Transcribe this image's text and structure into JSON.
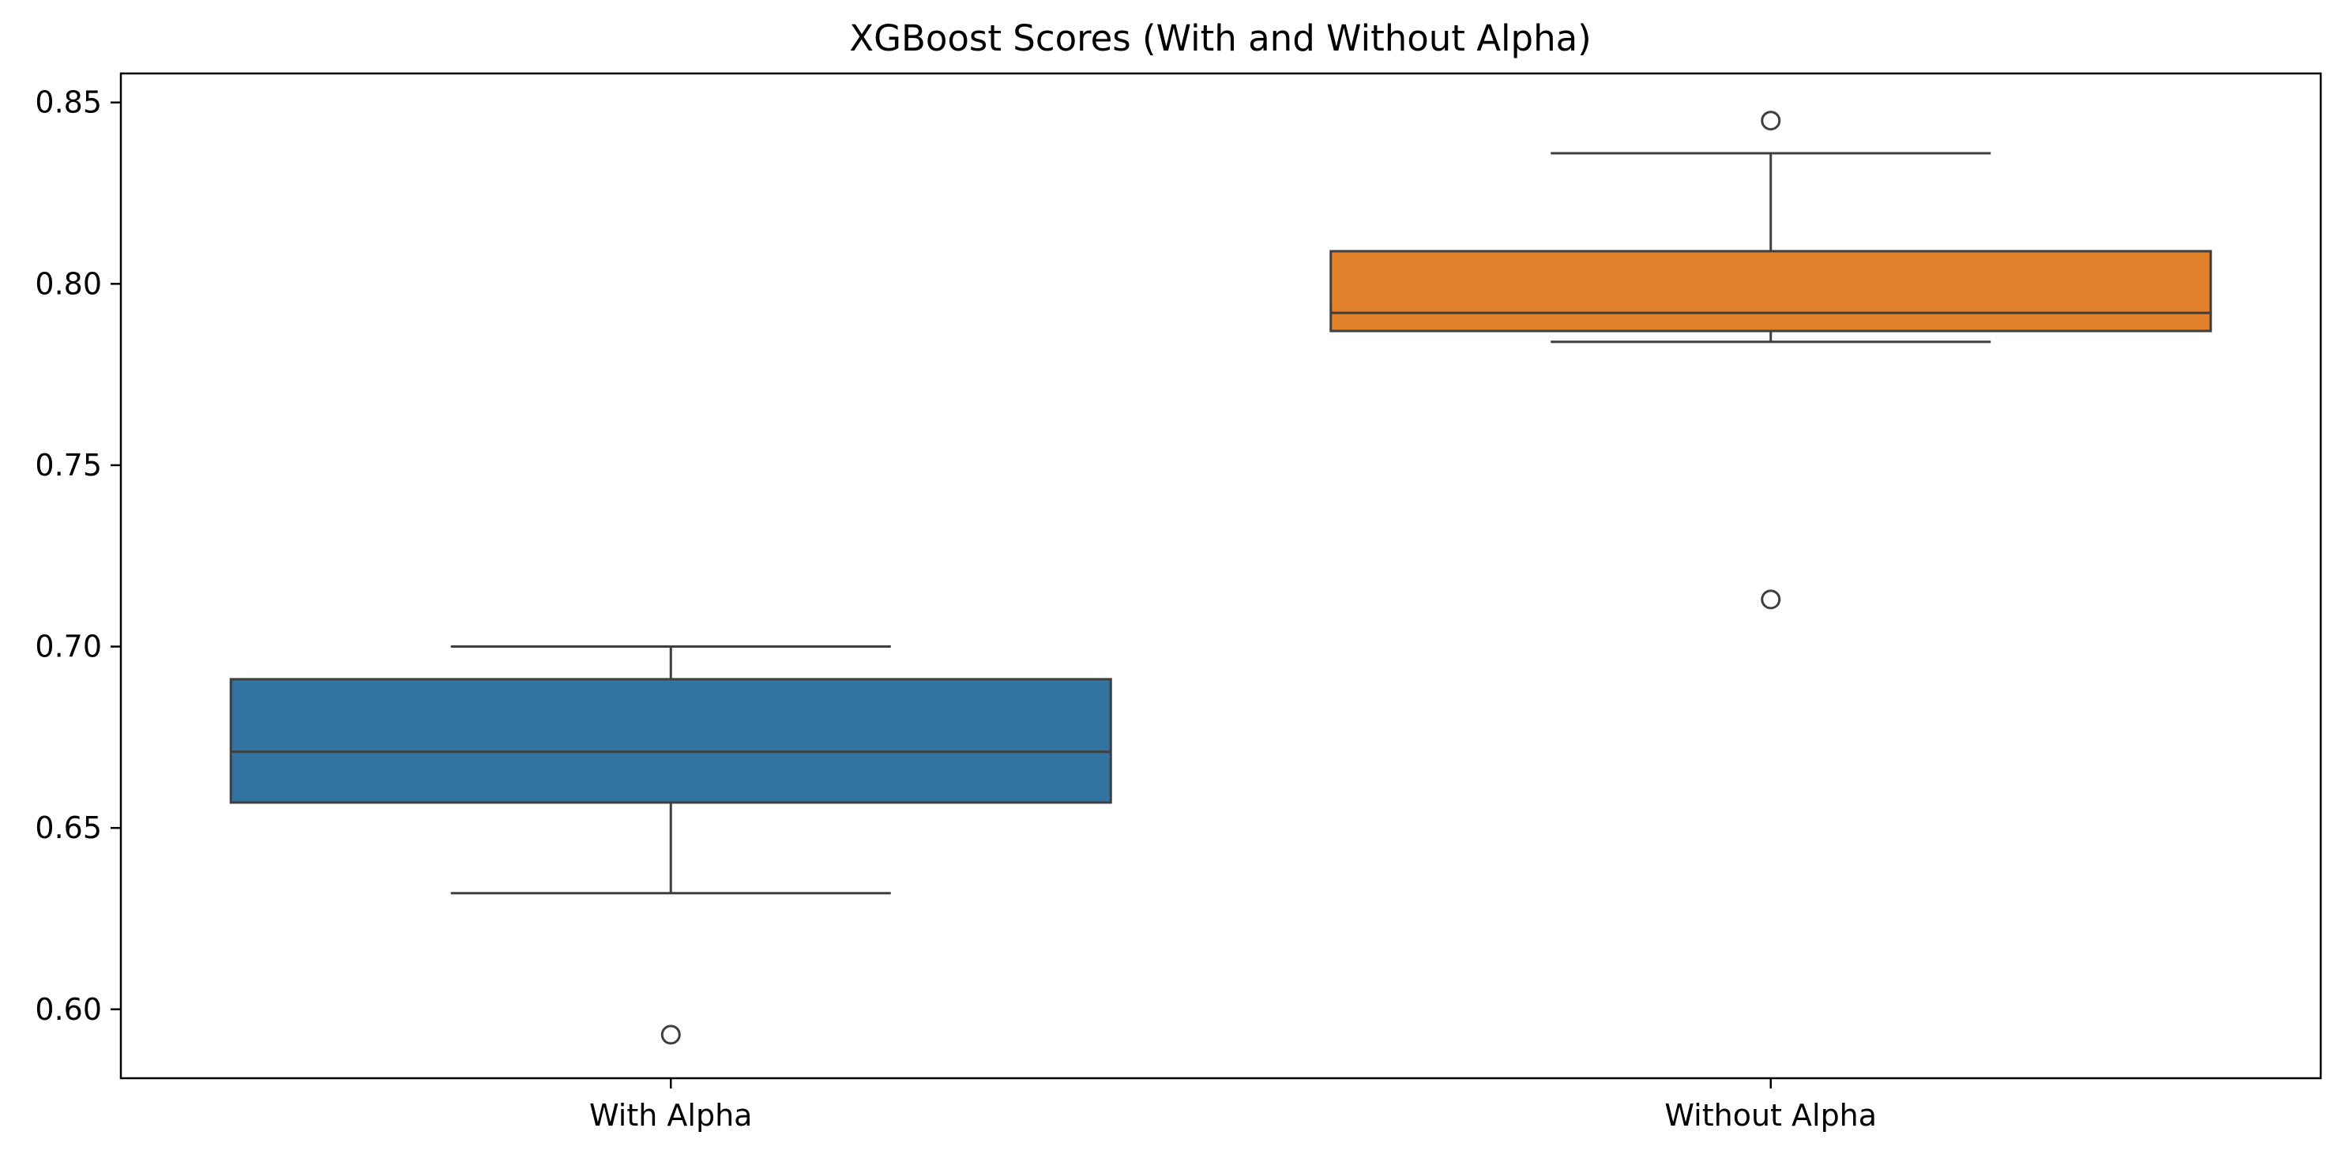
{
  "chart_data": {
    "type": "box",
    "title": "XGBoost Scores (With and Without Alpha)",
    "xlabel": "",
    "ylabel": "",
    "ylim": [
      0.581,
      0.858
    ],
    "yticks": [
      0.6,
      0.65,
      0.7,
      0.75,
      0.8,
      0.85
    ],
    "ytick_labels": [
      "0.60",
      "0.65",
      "0.70",
      "0.75",
      "0.80",
      "0.85"
    ],
    "categories": [
      "With Alpha",
      "Without Alpha"
    ],
    "boxes": [
      {
        "category": "With Alpha",
        "color": "#3274a1",
        "whisker_low": 0.632,
        "q1": 0.657,
        "median": 0.671,
        "q3": 0.691,
        "whisker_high": 0.7,
        "outliers": [
          0.593
        ]
      },
      {
        "category": "Without Alpha",
        "color": "#e1812c",
        "whisker_low": 0.784,
        "q1": 0.787,
        "median": 0.792,
        "q3": 0.809,
        "whisker_high": 0.836,
        "outliers": [
          0.845,
          0.713
        ]
      }
    ],
    "grid": false,
    "legend": "none"
  }
}
